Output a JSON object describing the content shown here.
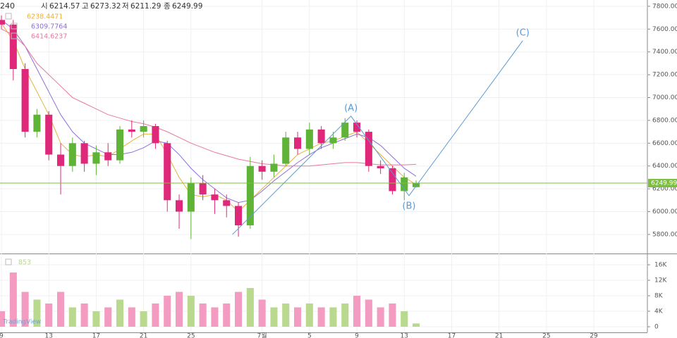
{
  "chart_data": {
    "type": "candlestick",
    "timeframe": "240",
    "ohlc": [
      {
        "label": "시",
        "value": 6214.57
      },
      {
        "label": "고",
        "value": 6273.32
      },
      {
        "label": "저",
        "value": 6211.29
      },
      {
        "label": "종",
        "value": 6249.99
      }
    ],
    "x": [
      9,
      10,
      11,
      12,
      13,
      14,
      15,
      16,
      17,
      18,
      19,
      20,
      21,
      22,
      23,
      24,
      25,
      26,
      27,
      28,
      29,
      30,
      31,
      32,
      33,
      34,
      35,
      36,
      37,
      38,
      39,
      40,
      41,
      42,
      43,
      44
    ],
    "open": [
      7680,
      7640,
      7250,
      6700,
      6850,
      6500,
      6400,
      6600,
      6420,
      6520,
      6450,
      6720,
      6700,
      6750,
      6600,
      6100,
      6000,
      6250,
      6150,
      6100,
      6050,
      5880,
      6400,
      6350,
      6420,
      6650,
      6550,
      6720,
      6600,
      6650,
      6780,
      6700,
      6400,
      6380,
      6180,
      6214.57
    ],
    "high": [
      7720,
      7680,
      7300,
      6900,
      6880,
      6600,
      6650,
      6620,
      6580,
      6600,
      6750,
      6800,
      6800,
      6770,
      6620,
      6150,
      6300,
      6320,
      6200,
      6150,
      6080,
      6480,
      6450,
      6500,
      6700,
      6700,
      6780,
      6750,
      6700,
      6820,
      6800,
      6720,
      6450,
      6400,
      6340,
      6273.32
    ],
    "low": [
      7600,
      7150,
      6650,
      6650,
      6450,
      6150,
      6350,
      6350,
      6320,
      6400,
      6420,
      6650,
      6650,
      6550,
      6000,
      5850,
      5760,
      6100,
      5980,
      5950,
      5780,
      5850,
      6280,
      6300,
      6400,
      6500,
      6500,
      6550,
      6550,
      6620,
      6650,
      6350,
      6330,
      6150,
      6100,
      6211.29
    ],
    "close": [
      7640,
      7250,
      6700,
      6850,
      6500,
      6400,
      6600,
      6420,
      6520,
      6450,
      6720,
      6700,
      6750,
      6600,
      6100,
      6000,
      6250,
      6150,
      6100,
      6050,
      5880,
      6400,
      6350,
      6420,
      6650,
      6550,
      6720,
      6600,
      6650,
      6780,
      6700,
      6400,
      6380,
      6180,
      6300,
      6249.99
    ],
    "volume": [
      4000,
      14000,
      9000,
      7000,
      6000,
      9000,
      5000,
      6000,
      4000,
      5000,
      7000,
      5000,
      4000,
      6000,
      8000,
      9000,
      8000,
      6000,
      5000,
      6000,
      9000,
      10000,
      7000,
      5000,
      6000,
      5000,
      6000,
      5000,
      5000,
      6000,
      8000,
      7000,
      5000,
      6000,
      4000,
      853
    ],
    "up_color": "#5fb336",
    "down_color": "#e0287a",
    "vol_up_color": "#b9d98e",
    "vol_down_color": "#f39bc0",
    "series": [
      {
        "color": "#e8b23a",
        "last_value": 6238.4471,
        "values": [
          7650,
          7500,
          7250,
          7050,
          6850,
          6600,
          6500,
          6480,
          6500,
          6480,
          6550,
          6620,
          6680,
          6680,
          6500,
          6300,
          6150,
          6130,
          6150,
          6100,
          6000,
          6100,
          6200,
          6300,
          6400,
          6500,
          6550,
          6600,
          6620,
          6660,
          6700,
          6600,
          6500,
          6400,
          6300,
          6238.4471
        ]
      },
      {
        "color": "#8e6fd8",
        "last_value": 6309.7764,
        "values": [
          7680,
          7600,
          7450,
          7250,
          7050,
          6850,
          6700,
          6600,
          6550,
          6500,
          6500,
          6520,
          6560,
          6620,
          6600,
          6500,
          6380,
          6280,
          6200,
          6120,
          6080,
          6100,
          6180,
          6270,
          6350,
          6430,
          6500,
          6560,
          6600,
          6640,
          6680,
          6650,
          6580,
          6480,
          6380,
          6309.7764
        ]
      },
      {
        "color": "#e8799a",
        "last_value": 6414.6237,
        "values": [
          7600,
          7550,
          7450,
          7300,
          7200,
          7100,
          7000,
          6950,
          6900,
          6850,
          6820,
          6790,
          6770,
          6740,
          6700,
          6650,
          6600,
          6560,
          6520,
          6490,
          6460,
          6440,
          6420,
          6410,
          6400,
          6400,
          6400,
          6410,
          6420,
          6430,
          6430,
          6420,
          6410,
          6410,
          6410,
          6414.6237
        ]
      }
    ],
    "waves": {
      "color": "#5b9bd5",
      "x": [
        28.5,
        38.5,
        43.4,
        53
      ],
      "y": [
        5800,
        6837,
        6140,
        7498
      ],
      "labels": [
        "(A)",
        "(B)",
        "(C)"
      ]
    },
    "price_line_color": "#7cbf3f",
    "xlim": [
      8.88,
      63.52
    ],
    "xticks": [
      {
        "value": 9,
        "label": "9"
      },
      {
        "value": 13,
        "label": "13"
      },
      {
        "value": 17,
        "label": "17"
      },
      {
        "value": 21,
        "label": "21"
      },
      {
        "value": 25,
        "label": "25"
      },
      {
        "value": 31,
        "label": "7월"
      },
      {
        "value": 35,
        "label": "5"
      },
      {
        "value": 39,
        "label": "9"
      },
      {
        "value": 43,
        "label": "13"
      },
      {
        "value": 47,
        "label": "17"
      },
      {
        "value": 51,
        "label": "21"
      },
      {
        "value": 55,
        "label": "25"
      },
      {
        "value": 59,
        "label": "29"
      }
    ],
    "ylim": [
      5633,
      7855
    ],
    "yticks": [
      {
        "value": 5800,
        "label": "5800.00"
      },
      {
        "value": 6000,
        "label": "6000.00"
      },
      {
        "value": 6200,
        "label": "6200.00"
      },
      {
        "value": 6400,
        "label": "6400.00"
      },
      {
        "value": 6600,
        "label": "6600.00"
      },
      {
        "value": 6800,
        "label": "6800.00"
      },
      {
        "value": 7000,
        "label": "7000.00"
      },
      {
        "value": 7200,
        "label": "7200.00"
      },
      {
        "value": 7400,
        "label": "7400.00"
      },
      {
        "value": 7600,
        "label": "7600.00"
      },
      {
        "value": 7800,
        "label": "7800.00"
      }
    ],
    "vlim": [
      -1455,
      18545
    ],
    "vticks": [
      0,
      {
        "value": 4000,
        "label": "4K"
      },
      {
        "value": 8000,
        "label": "8K"
      },
      {
        "value": 12000,
        "label": "12K"
      },
      {
        "value": 16000,
        "label": "16K"
      }
    ],
    "grid": true,
    "watermark": "TradingView"
  }
}
